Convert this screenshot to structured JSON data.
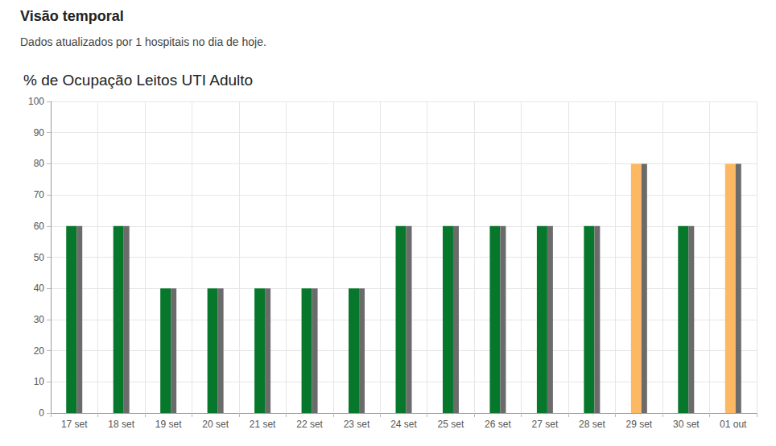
{
  "header": {
    "title": "Visão temporal",
    "subtitle": "Dados atualizados por 1 hospitais no dia de hoje."
  },
  "chart_data": {
    "type": "bar",
    "title": "% de Ocupação Leitos UTI Adulto",
    "categories": [
      "17 set",
      "18 set",
      "19 set",
      "20 set",
      "21 set",
      "22 set",
      "23 set",
      "24 set",
      "25 set",
      "26 set",
      "27 set",
      "28 set",
      "29 set",
      "30 set",
      "01 out"
    ],
    "series": [
      {
        "colors": [
          "#07782b",
          "#07782b",
          "#07782b",
          "#07782b",
          "#07782b",
          "#07782b",
          "#07782b",
          "#07782b",
          "#07782b",
          "#07782b",
          "#07782b",
          "#07782b",
          "#fdb863",
          "#07782b",
          "#fdb863"
        ],
        "values": [
          60,
          60,
          40,
          40,
          40,
          40,
          40,
          60,
          60,
          60,
          60,
          60,
          80,
          60,
          80
        ]
      },
      {
        "color": "#6b6b6b",
        "values": [
          60,
          60,
          40,
          40,
          40,
          40,
          40,
          60,
          60,
          60,
          60,
          60,
          80,
          60,
          80
        ]
      }
    ],
    "ylim": [
      0,
      100
    ],
    "yticks": [
      0,
      10,
      20,
      30,
      40,
      50,
      60,
      70,
      80,
      90,
      100
    ],
    "grid": true
  }
}
